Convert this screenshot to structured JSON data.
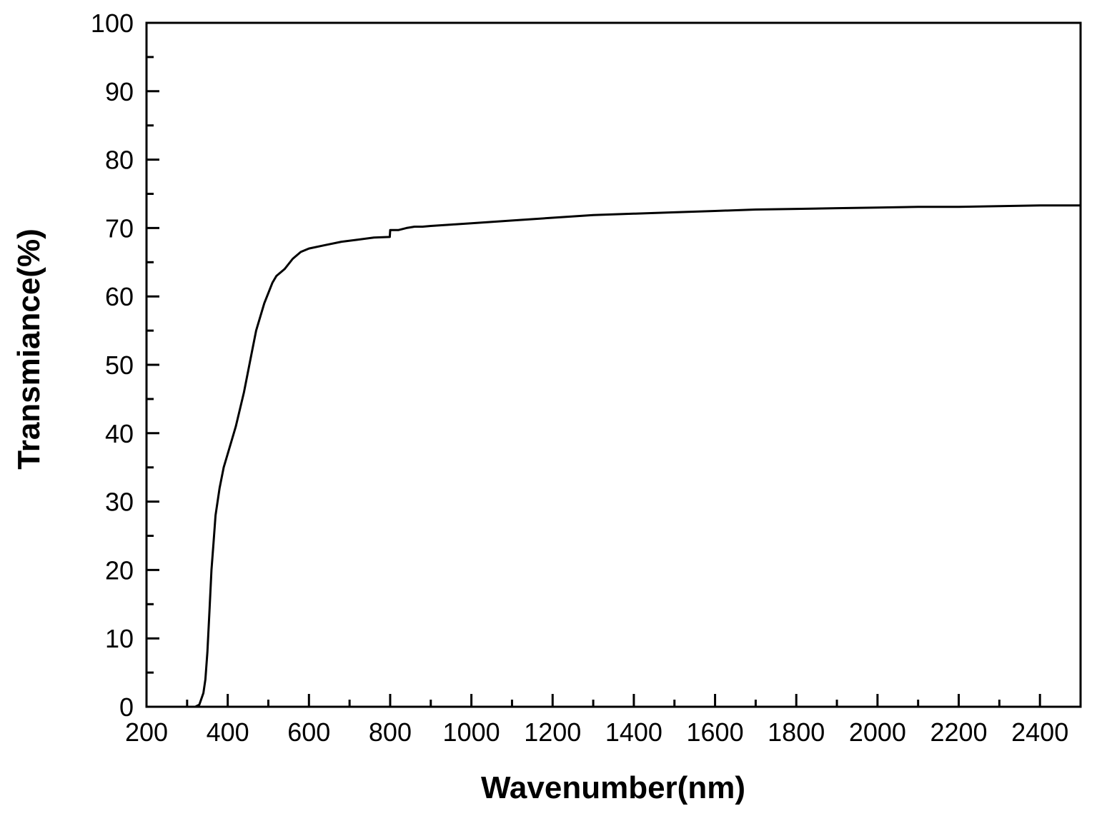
{
  "chart_data": {
    "type": "line",
    "title": "",
    "xlabel": "Wavenumber(nm)",
    "ylabel": "Transmiance(%)",
    "xlim": [
      200,
      2500
    ],
    "ylim": [
      0,
      100
    ],
    "x_ticks": [
      200,
      400,
      600,
      800,
      1000,
      1200,
      1400,
      1600,
      1800,
      2000,
      2200,
      2400
    ],
    "y_ticks": [
      0,
      10,
      20,
      30,
      40,
      50,
      60,
      70,
      80,
      90,
      100
    ],
    "x_tick_labels": [
      "200",
      "400",
      "600",
      "800",
      "1000",
      "1200",
      "1400",
      "1600",
      "1800",
      "2000",
      "2200",
      "2400"
    ],
    "y_tick_labels": [
      "0",
      "10",
      "20",
      "30",
      "40",
      "50",
      "60",
      "70",
      "80",
      "90",
      "100"
    ],
    "grid": false,
    "line_color": "#000000",
    "series": [
      {
        "x": [
          300,
          320,
          330,
          340,
          345,
          350,
          355,
          360,
          365,
          370,
          380,
          390,
          400,
          420,
          440,
          460,
          470,
          480,
          490,
          500,
          510,
          520,
          540,
          560,
          580,
          600,
          640,
          680,
          720,
          760,
          799,
          800,
          820,
          840,
          860,
          880,
          900,
          950,
          1000,
          1100,
          1200,
          1300,
          1400,
          1500,
          1600,
          1700,
          1800,
          1900,
          2000,
          2100,
          2200,
          2300,
          2400,
          2500
        ],
        "y": [
          0,
          0,
          0.3,
          2,
          4,
          8,
          14,
          20,
          24,
          28,
          32,
          35,
          37,
          41,
          46,
          52,
          55,
          57,
          59,
          60.5,
          62,
          63,
          64,
          65.5,
          66.5,
          67,
          67.5,
          68,
          68.3,
          68.6,
          68.7,
          69.7,
          69.7,
          70,
          70.2,
          70.2,
          70.3,
          70.5,
          70.7,
          71.1,
          71.5,
          71.9,
          72.1,
          72.3,
          72.5,
          72.7,
          72.8,
          72.9,
          73.0,
          73.1,
          73.1,
          73.2,
          73.3,
          73.3
        ]
      }
    ]
  }
}
